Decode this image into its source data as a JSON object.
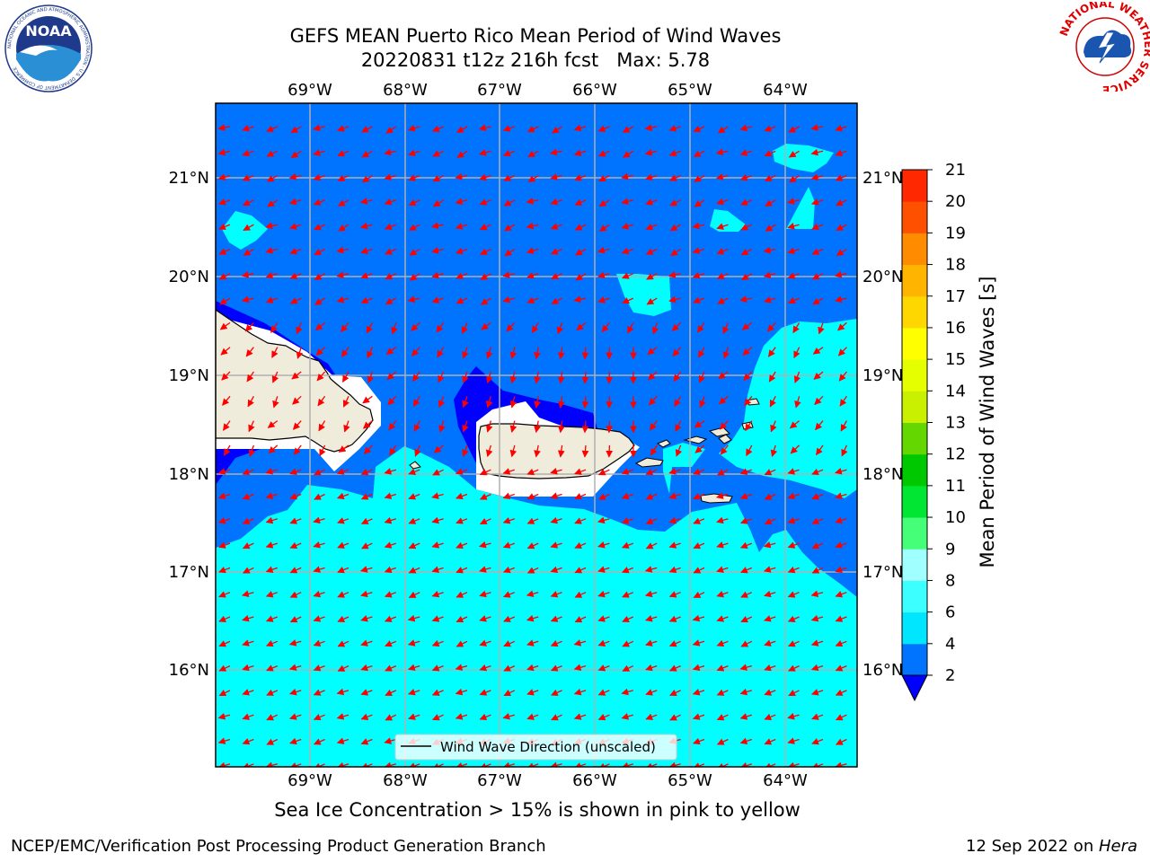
{
  "header": {
    "title_line1": "GEFS MEAN Puerto Rico Mean Period of Wind Waves",
    "title_line2": "20220831 t12z 216h fcst   Max: 5.78"
  },
  "logos": {
    "noaa_text": "NOAA",
    "noaa_ring_text": "NATIONAL OCEANIC AND ATMOSPHERIC ADMINISTRATION · U.S. DEPARTMENT OF COMMERCE",
    "nws_ring_text": "NATIONAL WEATHER SERVICE"
  },
  "map": {
    "lon_range": [
      -70.0,
      -63.25
    ],
    "lat_range": [
      15.0,
      21.75
    ],
    "lon_ticks": [
      "69°W",
      "68°W",
      "67°W",
      "66°W",
      "65°W",
      "64°W"
    ],
    "lat_ticks": [
      "21°N",
      "20°N",
      "19°N",
      "18°N",
      "17°N",
      "16°N"
    ],
    "grid": true,
    "legend_label": "Wind Wave Direction (unscaled)",
    "legend_position": "bottom-center",
    "arrow_color": "#ff0000",
    "land_color": "#efecdc"
  },
  "colorbar": {
    "label": "Mean Period of Wind Waves [s]",
    "ticks": [
      "2",
      "4",
      "6",
      "8",
      "9",
      "10",
      "11",
      "12",
      "13",
      "14",
      "15",
      "16",
      "17",
      "18",
      "19",
      "20",
      "21"
    ],
    "levels": [
      2,
      4,
      6,
      8,
      9,
      10,
      11,
      12,
      13,
      14,
      15,
      16,
      17,
      18,
      19,
      20,
      21
    ],
    "colors": [
      "#0073ff",
      "#00e6ff",
      "#3cffff",
      "#a0ffff",
      "#46ff78",
      "#00e632",
      "#00c800",
      "#64d700",
      "#c8f000",
      "#e6ff00",
      "#ffff00",
      "#ffd700",
      "#ffb400",
      "#ff8c00",
      "#ff5000",
      "#ff2800",
      "#ff0000"
    ],
    "under_color": "#0000ff",
    "extend": "min"
  },
  "footer": {
    "subtitle": "Sea Ice Concentration > 15% is shown in pink to yellow",
    "credit": "NCEP/EMC/Verification Post Processing Product Generation Branch",
    "date": "12 Sep 2022 on ",
    "machine": "Hera"
  }
}
